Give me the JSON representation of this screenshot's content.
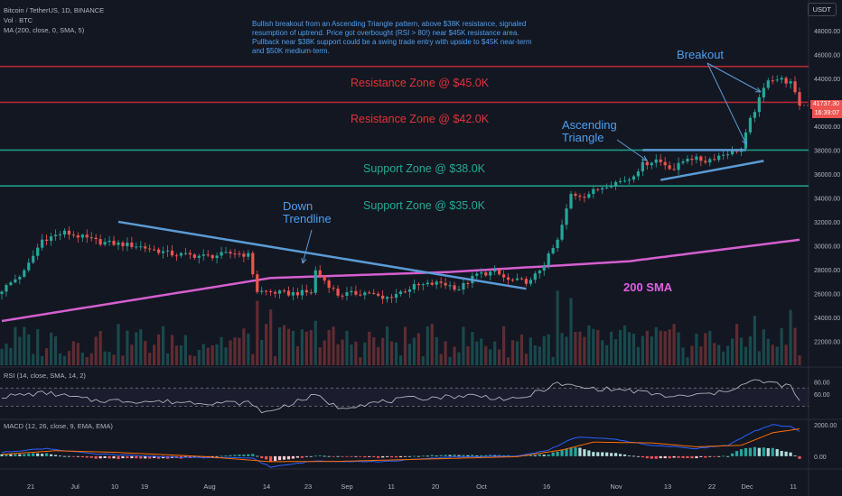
{
  "header": {
    "symbol_line": "Bitcoin / TetherUS, 1D, BINANCE",
    "vol_line": "Vol · BTC",
    "ma_line": "MA (200, close, 0, SMA, 5)",
    "currency_button": "USDT"
  },
  "annotation": {
    "text": "Bullish breakout from an Ascending Triangle pattern, above $38K resistance, signaled resumption of uptrend. Price got overbought (RSI > 80!) near $45K resistance area. Pullback near $38K support could be a swing trade entry with upside to $45K near-term and $50K medium-term."
  },
  "zones": {
    "res45": "Resistance Zone @ $45.0K",
    "res42": "Resistance Zone @ $42.0K",
    "sup38": "Support Zone @ $38.0K",
    "sup35": "Support Zone @ $35.0K"
  },
  "callouts": {
    "breakout": "Breakout",
    "ascending": "Ascending\nTriangle",
    "downtrend": "Down\nTrendline",
    "sma": "200 SMA"
  },
  "price_badge": {
    "price": "41737.30",
    "countdown": "16:39:07"
  },
  "colors": {
    "background": "#131722",
    "up": "#26a69a",
    "down": "#ef5350",
    "resistance": "#b22833",
    "support": "#1f9c85",
    "trend": "#5b9bd5",
    "sma": "#d55fd0",
    "rsi": "#aeb1b9",
    "macd": "#2962ff",
    "signal": "#ff6d00"
  },
  "chart_data": [
    {
      "type": "candlestick",
      "title": "",
      "ylim": [
        20000,
        49500
      ],
      "y_ticks": [
        "48000.00",
        "46000.00",
        "44000.00",
        "42000.00",
        "40000.00",
        "38000.00",
        "36000.00",
        "34000.00",
        "32000.00",
        "30000.00",
        "28000.00",
        "26000.00",
        "24000.00",
        "22000.00"
      ],
      "x_ticks": [
        "21",
        "Jul",
        "10",
        "19",
        "Aug",
        "14",
        "23",
        "Sep",
        "11",
        "20",
        "Oct",
        "16",
        "Nov",
        "13",
        "22",
        "Dec",
        "11"
      ],
      "horizontal_levels": [
        45000,
        42000,
        38000,
        35000
      ],
      "close_anchors": [
        [
          0,
          26300
        ],
        [
          5,
          27800
        ],
        [
          9,
          30500
        ],
        [
          14,
          31100
        ],
        [
          22,
          30300
        ],
        [
          30,
          30000
        ],
        [
          38,
          29300
        ],
        [
          46,
          29100
        ],
        [
          52,
          29400
        ],
        [
          55,
          29200
        ],
        [
          57,
          26200
        ],
        [
          64,
          26000
        ],
        [
          69,
          26100
        ],
        [
          70,
          27900
        ],
        [
          75,
          25900
        ],
        [
          82,
          26100
        ],
        [
          85,
          25500
        ],
        [
          92,
          26600
        ],
        [
          98,
          26900
        ],
        [
          102,
          26400
        ],
        [
          106,
          27600
        ],
        [
          110,
          27800
        ],
        [
          113,
          27100
        ],
        [
          118,
          27000
        ],
        [
          121,
          28500
        ],
        [
          124,
          30400
        ],
        [
          127,
          34300
        ],
        [
          130,
          34200
        ],
        [
          135,
          35100
        ],
        [
          140,
          35600
        ],
        [
          143,
          36800
        ],
        [
          146,
          37200
        ],
        [
          150,
          36400
        ],
        [
          153,
          37400
        ],
        [
          157,
          37100
        ],
        [
          162,
          37800
        ],
        [
          165,
          38100
        ],
        [
          167,
          40500
        ],
        [
          169,
          42200
        ],
        [
          171,
          44000
        ],
        [
          174,
          43900
        ],
        [
          176,
          43600
        ],
        [
          178,
          41700
        ]
      ],
      "sma200": [
        [
          0,
          23700
        ],
        [
          60,
          27300
        ],
        [
          100,
          27800
        ],
        [
          140,
          28700
        ],
        [
          178,
          30500
        ]
      ],
      "downtrend_line": [
        [
          26,
          32000
        ],
        [
          117,
          26400
        ]
      ],
      "triangle_top": [
        [
          143,
          38000
        ],
        [
          166,
          38000
        ]
      ],
      "triangle_bottom": [
        [
          147,
          35500
        ],
        [
          170,
          37100
        ]
      ],
      "last_price": 41737.3
    },
    {
      "type": "line",
      "name": "RSI (14, close, SMA, 14, 2)",
      "ylim": [
        20,
        100
      ],
      "y_ticks": [
        "80.00",
        "60.00"
      ],
      "band": [
        40,
        70
      ],
      "anchors": [
        [
          0,
          56
        ],
        [
          10,
          62
        ],
        [
          20,
          50
        ],
        [
          40,
          47
        ],
        [
          56,
          45
        ],
        [
          58,
          28
        ],
        [
          70,
          58
        ],
        [
          75,
          38
        ],
        [
          90,
          52
        ],
        [
          105,
          58
        ],
        [
          115,
          50
        ],
        [
          124,
          77
        ],
        [
          130,
          70
        ],
        [
          140,
          66
        ],
        [
          150,
          55
        ],
        [
          160,
          62
        ],
        [
          168,
          82
        ],
        [
          172,
          78
        ],
        [
          176,
          72
        ],
        [
          178,
          48
        ]
      ]
    },
    {
      "type": "line",
      "name": "MACD (12, 26, close, 9, EMA, EMA)",
      "ylim": [
        -700,
        2300
      ],
      "y_ticks": [
        "2000.00",
        "0.00"
      ],
      "macd_anchors": [
        [
          0,
          250
        ],
        [
          10,
          500
        ],
        [
          20,
          150
        ],
        [
          40,
          -80
        ],
        [
          56,
          -120
        ],
        [
          60,
          -700
        ],
        [
          70,
          -300
        ],
        [
          85,
          -350
        ],
        [
          100,
          -50
        ],
        [
          115,
          0
        ],
        [
          122,
          400
        ],
        [
          128,
          1200
        ],
        [
          135,
          1150
        ],
        [
          145,
          700
        ],
        [
          155,
          500
        ],
        [
          162,
          700
        ],
        [
          168,
          1600
        ],
        [
          172,
          2000
        ],
        [
          176,
          1900
        ],
        [
          178,
          1600
        ]
      ],
      "signal_anchors": [
        [
          0,
          120
        ],
        [
          12,
          350
        ],
        [
          25,
          250
        ],
        [
          45,
          -20
        ],
        [
          60,
          -350
        ],
        [
          75,
          -330
        ],
        [
          95,
          -180
        ],
        [
          115,
          -30
        ],
        [
          125,
          400
        ],
        [
          132,
          900
        ],
        [
          145,
          850
        ],
        [
          155,
          600
        ],
        [
          165,
          700
        ],
        [
          172,
          1500
        ],
        [
          178,
          1750
        ]
      ]
    }
  ]
}
